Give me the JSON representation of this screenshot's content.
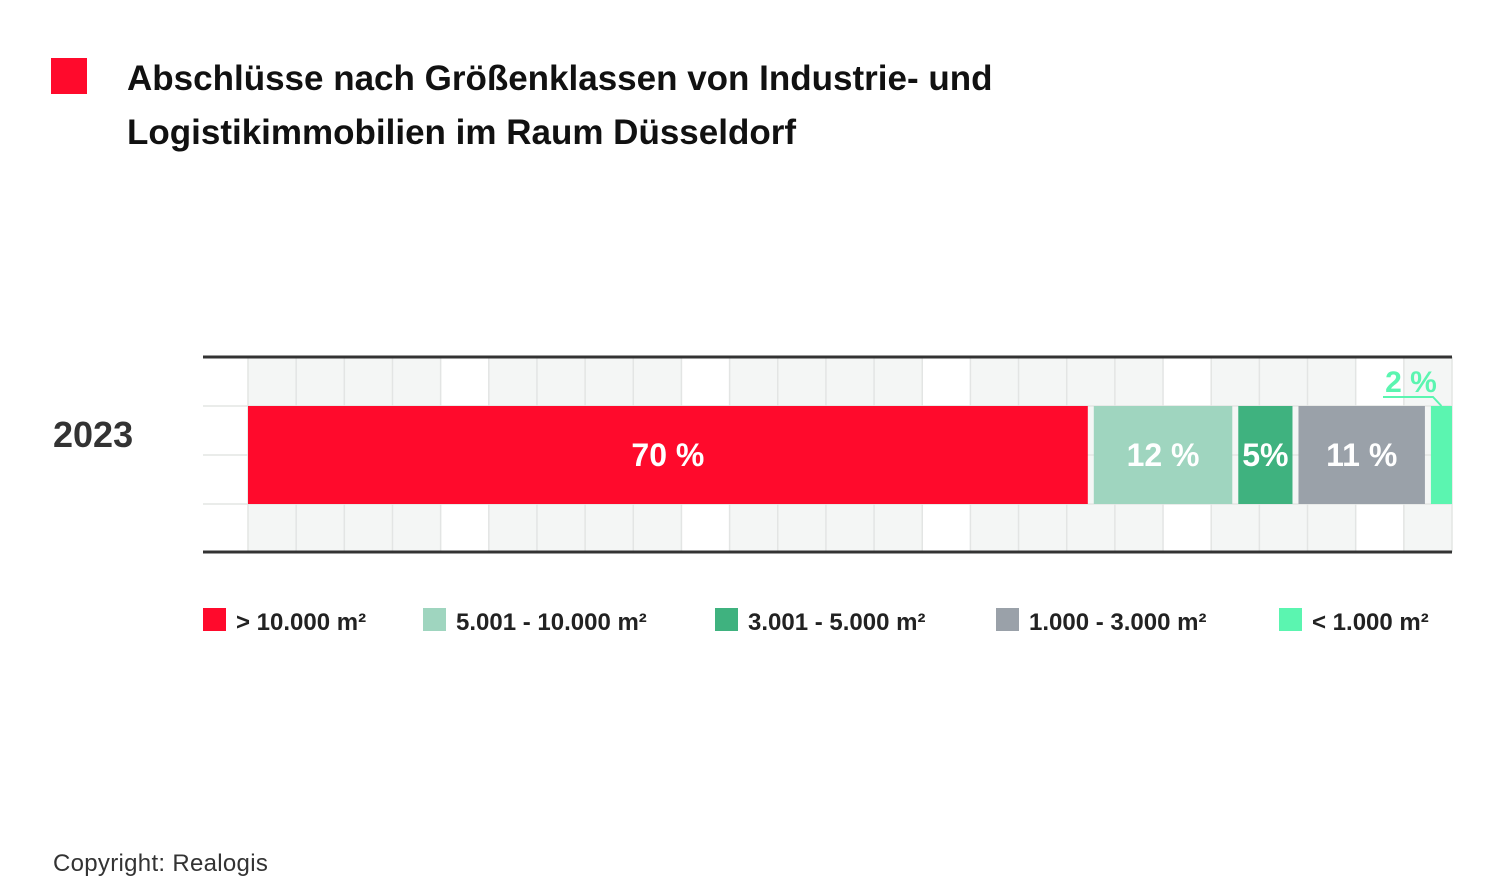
{
  "title": {
    "line1": "Abschlüsse nach Größenklassen von Industrie- und",
    "line2": "Logistikimmobilien im Raum Düsseldorf",
    "marker_color": "#ff0a2c"
  },
  "chart_data": {
    "type": "bar",
    "orientation": "horizontal",
    "stacked": true,
    "categories": [
      "2023"
    ],
    "series": [
      {
        "name": "> 10.000 m²",
        "values": [
          70
        ],
        "label": "70 %",
        "color": "#ff0a2c"
      },
      {
        "name": "5.001 - 10.000 m²",
        "values": [
          12
        ],
        "label": "12 %",
        "color": "#9fd5bf"
      },
      {
        "name": "3.001 - 5.000 m²",
        "values": [
          5
        ],
        "label": "5%",
        "color": "#3fb27f"
      },
      {
        "name": "1.000 - 3.000 m²",
        "values": [
          11
        ],
        "label": "11 %",
        "color": "#9aa1a9"
      },
      {
        "name": "< 1.000 m²",
        "values": [
          2
        ],
        "label": "2 %",
        "color": "#5bf5b0"
      }
    ],
    "xlim": [
      0,
      100
    ],
    "grid": true,
    "legend": "bottom"
  },
  "copyright": "Copyright: Realogis"
}
